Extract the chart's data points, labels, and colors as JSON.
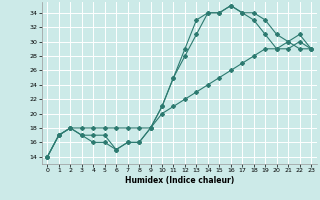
{
  "xlabel": "Humidex (Indice chaleur)",
  "bg_color": "#cceae8",
  "grid_color": "#ffffff",
  "line_color": "#2d7a70",
  "xlim": [
    -0.5,
    23.5
  ],
  "ylim": [
    13,
    35.5
  ],
  "yticks": [
    14,
    16,
    18,
    20,
    22,
    24,
    26,
    28,
    30,
    32,
    34
  ],
  "xticks": [
    0,
    1,
    2,
    3,
    4,
    5,
    6,
    7,
    8,
    9,
    10,
    11,
    12,
    13,
    14,
    15,
    16,
    17,
    18,
    19,
    20,
    21,
    22,
    23
  ],
  "series1_x": [
    0,
    1,
    2,
    3,
    4,
    5,
    6,
    7,
    8,
    9,
    10,
    11,
    12,
    13,
    14,
    15,
    16,
    17,
    18,
    19,
    20,
    21,
    22,
    23
  ],
  "series1_y": [
    14,
    17,
    18,
    17,
    17,
    17,
    15,
    16,
    16,
    18,
    21,
    25,
    29,
    33,
    34,
    34,
    35,
    34,
    34,
    33,
    31,
    30,
    29,
    29
  ],
  "series2_x": [
    0,
    1,
    2,
    3,
    4,
    5,
    6,
    7,
    8,
    9,
    10,
    11,
    12,
    13,
    14,
    15,
    16,
    17,
    18,
    19,
    20,
    21,
    22,
    23
  ],
  "series2_y": [
    14,
    17,
    18,
    18,
    18,
    18,
    18,
    18,
    18,
    18,
    20,
    21,
    22,
    23,
    24,
    25,
    26,
    27,
    28,
    29,
    29,
    29,
    30,
    29
  ],
  "series3_x": [
    0,
    1,
    2,
    3,
    4,
    5,
    6,
    7,
    8,
    9,
    10,
    11,
    12,
    13,
    14,
    15,
    16,
    17,
    18,
    19,
    20,
    21,
    22,
    23
  ],
  "series3_y": [
    14,
    17,
    18,
    17,
    16,
    16,
    15,
    16,
    16,
    18,
    21,
    25,
    28,
    31,
    34,
    34,
    35,
    34,
    33,
    31,
    29,
    30,
    31,
    29
  ]
}
